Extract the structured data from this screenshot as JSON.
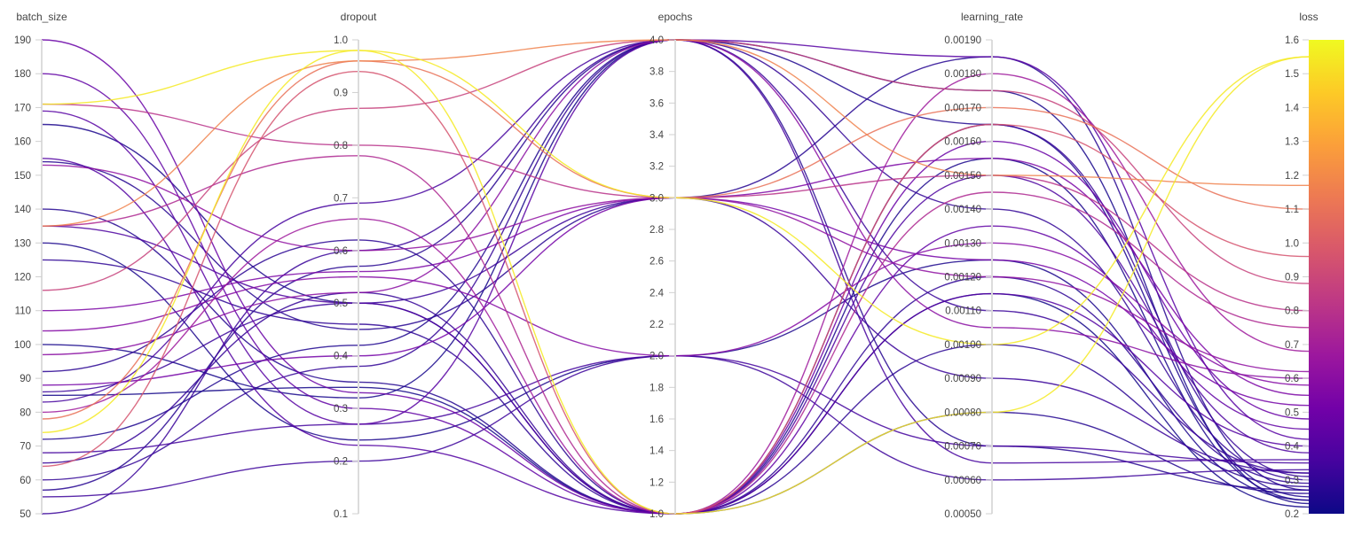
{
  "chart_data": {
    "type": "parallel_coordinates",
    "title": "",
    "axes": [
      {
        "name": "batch_size",
        "range": [
          50,
          190
        ],
        "ticks": [
          50,
          60,
          70,
          80,
          90,
          100,
          110,
          120,
          130,
          140,
          150,
          160,
          170,
          180,
          190
        ],
        "tick_labels": [
          "50",
          "60",
          "70",
          "80",
          "90",
          "100",
          "110",
          "120",
          "130",
          "140",
          "150",
          "160",
          "170",
          "180",
          "190"
        ]
      },
      {
        "name": "dropout",
        "range": [
          0.1,
          1.0
        ],
        "ticks": [
          0.1,
          0.2,
          0.3,
          0.4,
          0.5,
          0.6,
          0.7,
          0.8,
          0.9,
          1.0
        ],
        "tick_labels": [
          "0.1",
          "0.2",
          "0.3",
          "0.4",
          "0.5",
          "0.6",
          "0.7",
          "0.8",
          "0.9",
          "1.0"
        ]
      },
      {
        "name": "epochs",
        "range": [
          1.0,
          4.0
        ],
        "ticks": [
          1.0,
          1.2,
          1.4,
          1.6,
          1.8,
          2.0,
          2.2,
          2.4,
          2.6,
          2.8,
          3.0,
          3.2,
          3.4,
          3.6,
          3.8,
          4.0
        ],
        "tick_labels": [
          "1.0",
          "1.2",
          "1.4",
          "1.6",
          "1.8",
          "2.0",
          "2.2",
          "2.4",
          "2.6",
          "2.8",
          "3.0",
          "3.2",
          "3.4",
          "3.6",
          "3.8",
          "4.0"
        ]
      },
      {
        "name": "learning_rate",
        "range": [
          0.0005,
          0.0019
        ],
        "ticks": [
          0.0005,
          0.0006,
          0.0007,
          0.0008,
          0.0009,
          0.001,
          0.0011,
          0.0012,
          0.0013,
          0.0014,
          0.0015,
          0.0016,
          0.0017,
          0.0018,
          0.0019
        ],
        "tick_labels": [
          "0.00050",
          "0.00060",
          "0.00070",
          "0.00080",
          "0.00090",
          "0.00100",
          "0.00110",
          "0.00120",
          "0.00130",
          "0.00140",
          "0.00150",
          "0.00160",
          "0.00170",
          "0.00180",
          "0.00190"
        ]
      },
      {
        "name": "loss",
        "range": [
          0.2,
          1.6
        ],
        "ticks": [
          0.2,
          0.3,
          0.4,
          0.5,
          0.6,
          0.7,
          0.8,
          0.9,
          1.0,
          1.1,
          1.2,
          1.3,
          1.4,
          1.5,
          1.6
        ],
        "tick_labels": [
          "0.2",
          "0.3",
          "0.4",
          "0.5",
          "0.6",
          "0.7",
          "0.8",
          "0.9",
          "1.0",
          "1.1",
          "1.2",
          "1.3",
          "1.4",
          "1.5",
          "1.6"
        ]
      }
    ],
    "colorscale": {
      "variable": "loss",
      "range": [
        0.2,
        1.6
      ],
      "stops": [
        "#0d0887",
        "#46039f",
        "#7201a8",
        "#9c179e",
        "#bd3786",
        "#d8576b",
        "#ed7953",
        "#fb9f3a",
        "#fdca26",
        "#f0f921"
      ]
    },
    "curve": "smooth",
    "records": [
      {
        "batch_size": 171,
        "dropout": 0.98,
        "epochs": 3.0,
        "learning_rate": 0.001,
        "loss": 1.55
      },
      {
        "batch_size": 74,
        "dropout": 0.98,
        "epochs": 1.0,
        "learning_rate": 0.0008,
        "loss": 1.55
      },
      {
        "batch_size": 135,
        "dropout": 0.96,
        "epochs": 4.0,
        "learning_rate": 0.0015,
        "loss": 1.17
      },
      {
        "batch_size": 78,
        "dropout": 0.96,
        "epochs": 3.0,
        "learning_rate": 0.0017,
        "loss": 1.1
      },
      {
        "batch_size": 64,
        "dropout": 0.94,
        "epochs": 1.0,
        "learning_rate": 0.00165,
        "loss": 0.96
      },
      {
        "batch_size": 116,
        "dropout": 0.87,
        "epochs": 4.0,
        "learning_rate": 0.00175,
        "loss": 0.88
      },
      {
        "batch_size": 171,
        "dropout": 0.8,
        "epochs": 3.0,
        "learning_rate": 0.0015,
        "loss": 0.8
      },
      {
        "batch_size": 135,
        "dropout": 0.78,
        "epochs": 1.0,
        "learning_rate": 0.00145,
        "loss": 0.75
      },
      {
        "batch_size": 80,
        "dropout": 0.66,
        "epochs": 1.0,
        "learning_rate": 0.0018,
        "loss": 0.68
      },
      {
        "batch_size": 153,
        "dropout": 0.6,
        "epochs": 3.0,
        "learning_rate": 0.0012,
        "loss": 0.62
      },
      {
        "batch_size": 97,
        "dropout": 0.52,
        "epochs": 4.0,
        "learning_rate": 0.00105,
        "loss": 0.6
      },
      {
        "batch_size": 104,
        "dropout": 0.55,
        "epochs": 2.0,
        "learning_rate": 0.0013,
        "loss": 0.58
      },
      {
        "batch_size": 110,
        "dropout": 0.56,
        "epochs": 3.0,
        "learning_rate": 0.00155,
        "loss": 0.55
      },
      {
        "batch_size": 88,
        "dropout": 0.4,
        "epochs": 3.0,
        "learning_rate": 0.00125,
        "loss": 0.52
      },
      {
        "batch_size": 190,
        "dropout": 0.33,
        "epochs": 1.0,
        "learning_rate": 0.0016,
        "loss": 0.48
      },
      {
        "batch_size": 180,
        "dropout": 0.3,
        "epochs": 1.0,
        "learning_rate": 0.00135,
        "loss": 0.45
      },
      {
        "batch_size": 169,
        "dropout": 0.27,
        "epochs": 4.0,
        "learning_rate": 0.00185,
        "loss": 0.42
      },
      {
        "batch_size": 155,
        "dropout": 0.23,
        "epochs": 1.0,
        "learning_rate": 0.00115,
        "loss": 0.4
      },
      {
        "batch_size": 135,
        "dropout": 0.5,
        "epochs": 1.0,
        "learning_rate": 0.0015,
        "loss": 0.38
      },
      {
        "batch_size": 83,
        "dropout": 0.69,
        "epochs": 4.0,
        "learning_rate": 0.00065,
        "loss": 0.36
      },
      {
        "batch_size": 68,
        "dropout": 0.27,
        "epochs": 2.0,
        "learning_rate": 0.0007,
        "loss": 0.35
      },
      {
        "batch_size": 55,
        "dropout": 0.2,
        "epochs": 2.0,
        "learning_rate": 0.0006,
        "loss": 0.33
      },
      {
        "batch_size": 50,
        "dropout": 0.6,
        "epochs": 4.0,
        "learning_rate": 0.0011,
        "loss": 0.32
      },
      {
        "batch_size": 86,
        "dropout": 0.5,
        "epochs": 3.0,
        "learning_rate": 0.0009,
        "loss": 0.32
      },
      {
        "batch_size": 65,
        "dropout": 0.52,
        "epochs": 1.0,
        "learning_rate": 0.00165,
        "loss": 0.31
      },
      {
        "batch_size": 60,
        "dropout": 0.38,
        "epochs": 4.0,
        "learning_rate": 0.0014,
        "loss": 0.3
      },
      {
        "batch_size": 125,
        "dropout": 0.46,
        "epochs": 1.0,
        "learning_rate": 0.0012,
        "loss": 0.29
      },
      {
        "batch_size": 92,
        "dropout": 0.62,
        "epochs": 1.0,
        "learning_rate": 0.001,
        "loss": 0.28
      },
      {
        "batch_size": 154,
        "dropout": 0.45,
        "epochs": 3.0,
        "learning_rate": 0.00185,
        "loss": 0.27
      },
      {
        "batch_size": 57,
        "dropout": 0.57,
        "epochs": 4.0,
        "learning_rate": 0.0007,
        "loss": 0.27
      },
      {
        "batch_size": 140,
        "dropout": 0.35,
        "epochs": 1.0,
        "learning_rate": 0.0008,
        "loss": 0.26
      },
      {
        "batch_size": 72,
        "dropout": 0.42,
        "epochs": 4.0,
        "learning_rate": 0.00165,
        "loss": 0.25
      },
      {
        "batch_size": 130,
        "dropout": 0.24,
        "epochs": 2.0,
        "learning_rate": 0.00125,
        "loss": 0.24
      },
      {
        "batch_size": 165,
        "dropout": 0.5,
        "epochs": 1.0,
        "learning_rate": 0.00155,
        "loss": 0.24
      },
      {
        "batch_size": 100,
        "dropout": 0.32,
        "epochs": 4.0,
        "learning_rate": 0.00175,
        "loss": 0.23
      },
      {
        "batch_size": 85,
        "dropout": 0.34,
        "epochs": 1.0,
        "learning_rate": 0.00115,
        "loss": 0.22
      }
    ]
  }
}
